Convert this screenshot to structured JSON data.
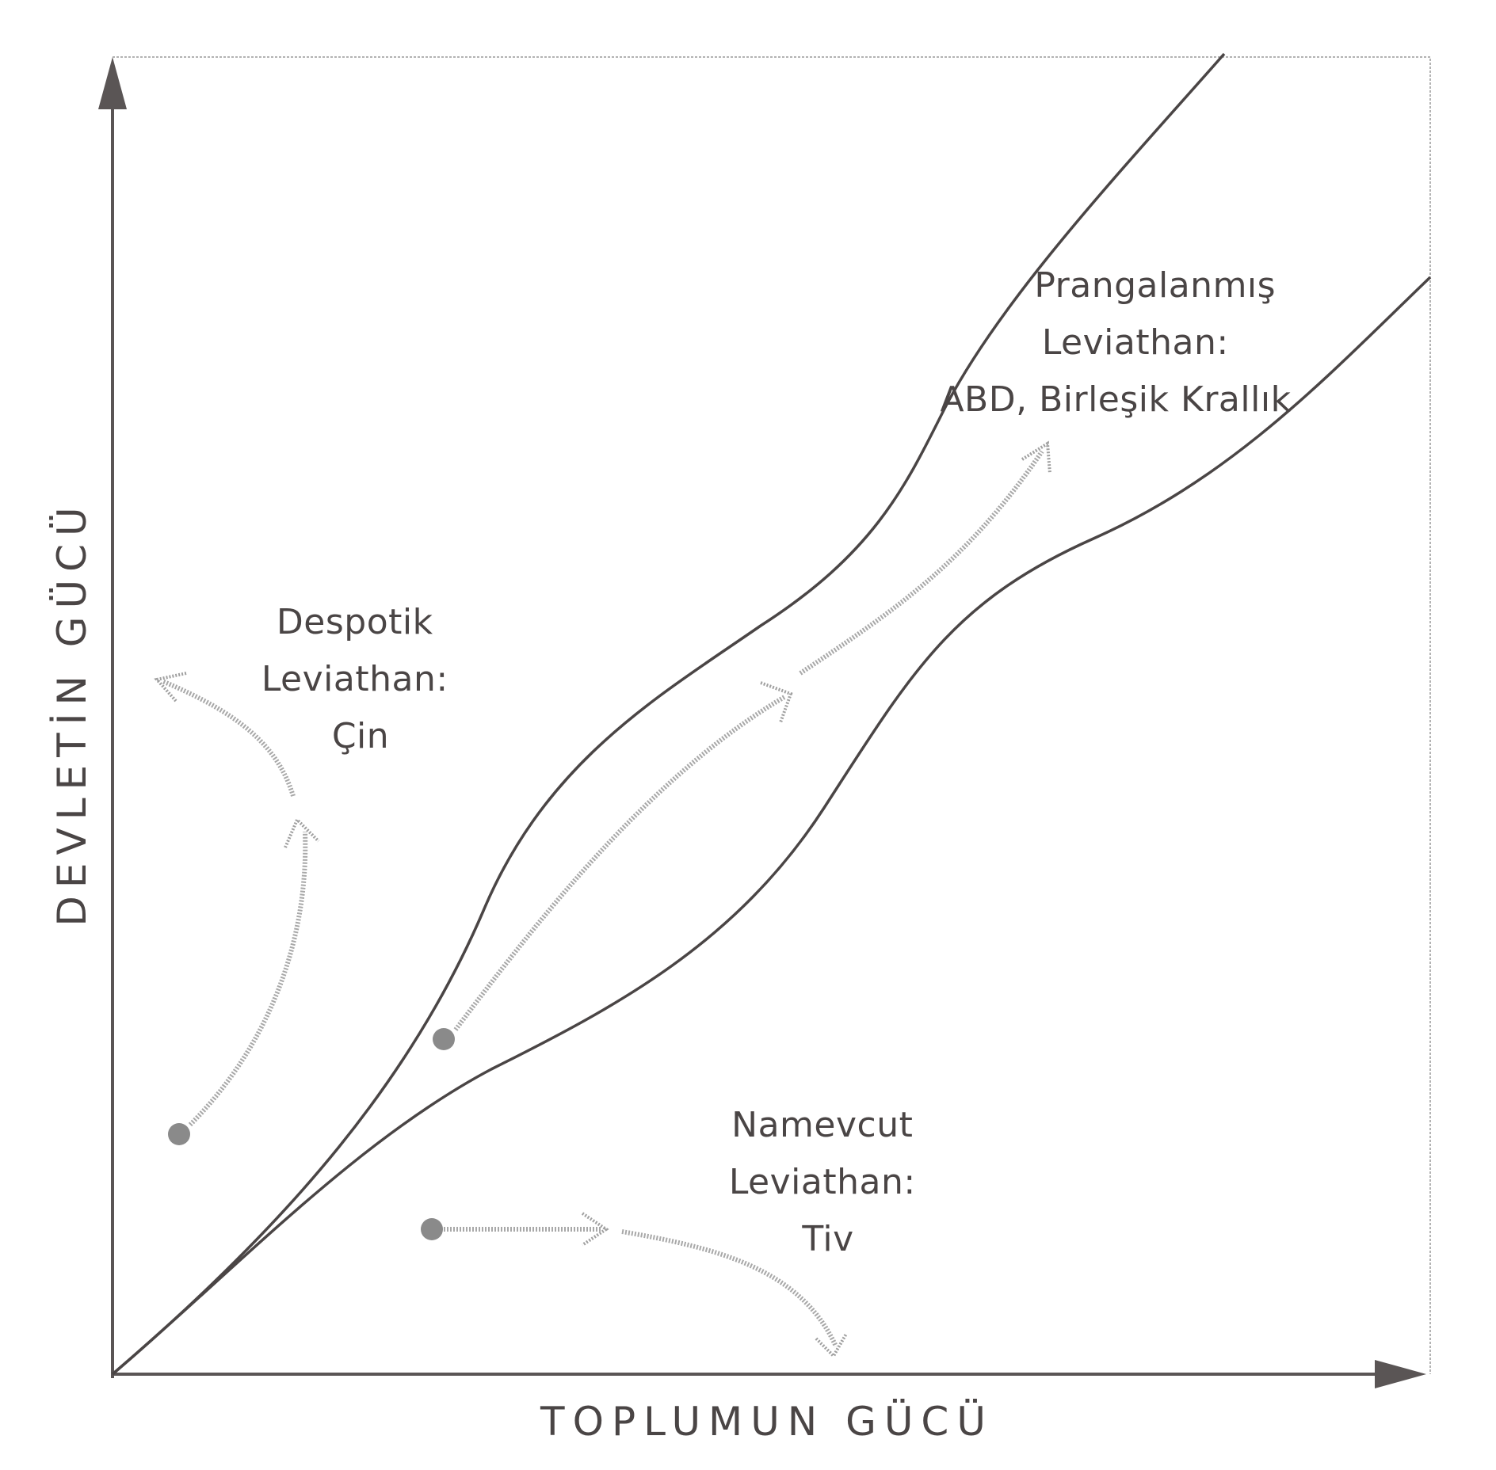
{
  "axes": {
    "x_label": "TOPLUMUN GÜCÜ",
    "y_label": "DEVLETİN GÜCÜ"
  },
  "regions": {
    "despotic": {
      "lines": [
        "Despotik",
        "Leviathan:",
        "Çin"
      ]
    },
    "shackled": {
      "lines": [
        "Prangalanmış",
        "Leviathan:",
        "ABD, Birleşik Krallık"
      ]
    },
    "absent": {
      "lines": [
        "Namevcut",
        "Leviathan:",
        "Tiv"
      ]
    }
  },
  "colors": {
    "line": "#4a4545",
    "arrow": "#a8a8a8",
    "text": "#4a4545"
  }
}
